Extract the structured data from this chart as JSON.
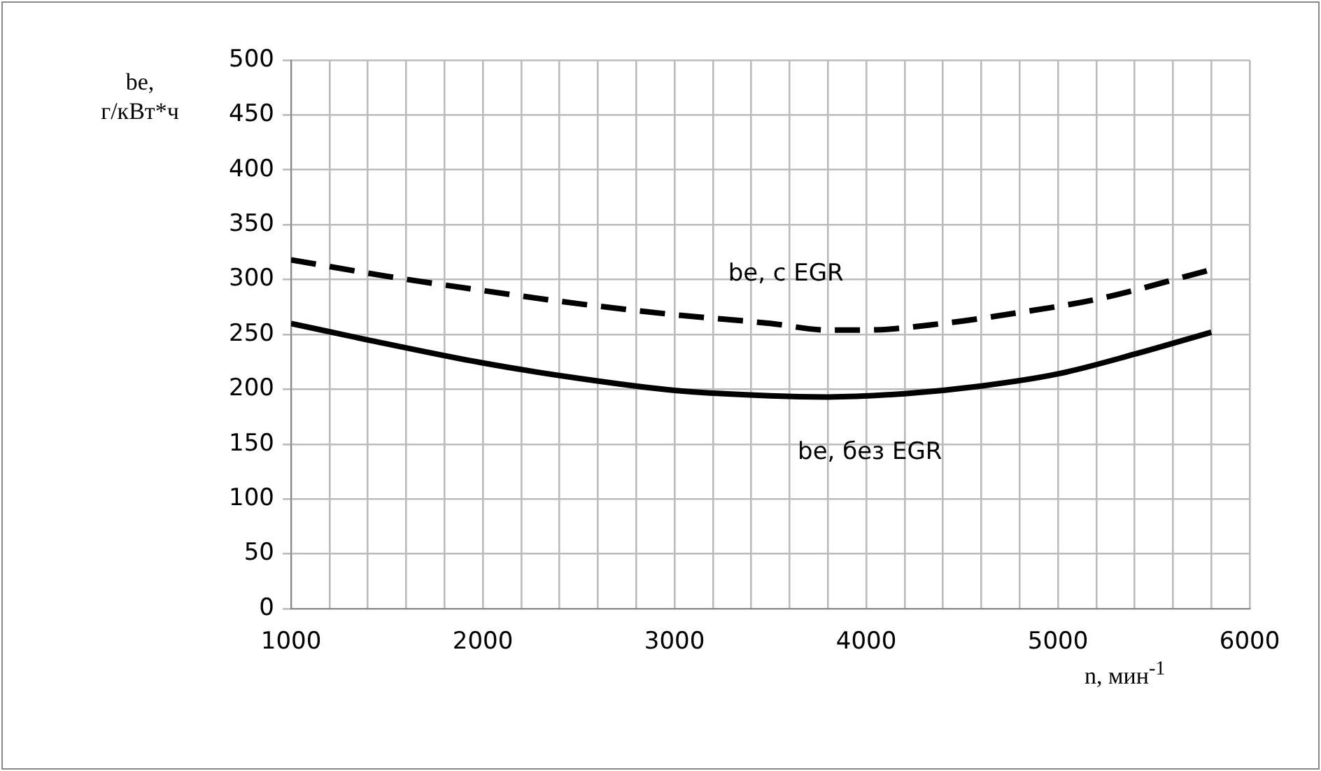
{
  "chart_data": {
    "type": "line",
    "xlabel": "n, мин$^{-1}$",
    "ylabel": "be, г/кВт*ч",
    "xlim": [
      1000,
      6000
    ],
    "ylim": [
      0,
      500
    ],
    "xticks": [
      1000,
      {
        "value": 1200,
        "label": null
      },
      {
        "value": 1400,
        "label": null
      },
      {
        "value": 1600,
        "label": null
      },
      {
        "value": 1800,
        "label": null
      },
      2000,
      {
        "value": 2200,
        "label": null
      },
      {
        "value": 2400,
        "label": null
      },
      {
        "value": 2600,
        "label": null
      },
      {
        "value": 2800,
        "label": null
      },
      3000,
      {
        "value": 3200,
        "label": null
      },
      {
        "value": 3400,
        "label": null
      },
      {
        "value": 3600,
        "label": null
      },
      {
        "value": 3800,
        "label": null
      },
      4000,
      {
        "value": 4200,
        "label": null
      },
      {
        "value": 4400,
        "label": null
      },
      {
        "value": 4600,
        "label": null
      },
      {
        "value": 4800,
        "label": null
      },
      5000,
      {
        "value": 5200,
        "label": null
      },
      {
        "value": 5400,
        "label": null
      },
      {
        "value": 5600,
        "label": null
      },
      {
        "value": 5800,
        "label": null
      },
      6000
    ],
    "yticks": [
      0,
      50,
      100,
      150,
      200,
      250,
      300,
      350,
      400,
      450,
      500
    ],
    "grid": true,
    "legend": false,
    "marker": "none",
    "series": [
      {
        "name": "be, с EGR",
        "color": "#000000",
        "line_style": "dashed",
        "x": [
          1000,
          1500,
          2000,
          2500,
          3000,
          3500,
          3800,
          4000,
          4400,
          4800,
          5200,
          5800
        ],
        "values": [
          318,
          303,
          290,
          278,
          268,
          260,
          254,
          254,
          260,
          270,
          282,
          309
        ]
      },
      {
        "name": "be, без EGR",
        "color": "#000000",
        "line_style": "solid",
        "x": [
          1000,
          1400,
          2000,
          2500,
          3000,
          3500,
          3800,
          4200,
          4600,
          5000,
          5400,
          5800
        ],
        "values": [
          260,
          245,
          224,
          210,
          199,
          194,
          193,
          196,
          203,
          214,
          232,
          252
        ]
      }
    ]
  }
}
